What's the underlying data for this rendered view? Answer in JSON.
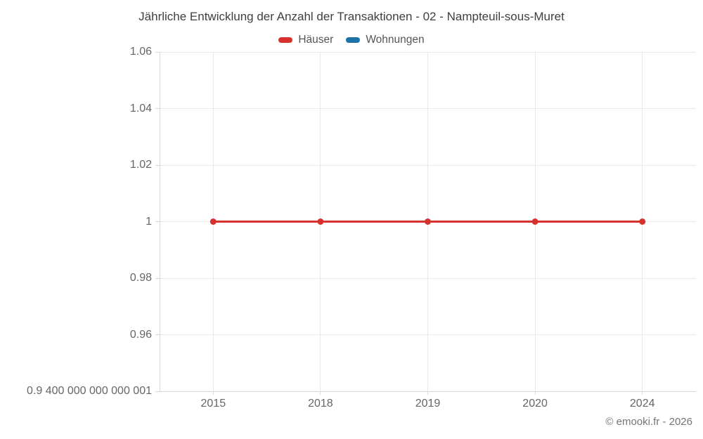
{
  "chart": {
    "title": "Jährliche Entwicklung der Anzahl der Transaktionen - 02 - Nampteuil-sous-Muret",
    "attribution": "© emooki.fr - 2026"
  },
  "chart_data": {
    "type": "line",
    "title": "Jährliche Entwicklung der Anzahl der Transaktionen - 02 - Nampteuil-sous-Muret",
    "categories": [
      "2015",
      "2018",
      "2019",
      "2020",
      "2024"
    ],
    "series": [
      {
        "name": "Häuser",
        "color": "#d7312d",
        "values": [
          1,
          1,
          1,
          1,
          1
        ]
      },
      {
        "name": "Wohnungen",
        "color": "#1d73a8",
        "values": []
      }
    ],
    "xlabel": "",
    "ylabel": "",
    "ylim": [
      0.9400000000000001,
      1.06
    ],
    "y_ticks": [
      {
        "value": 1.06,
        "label": "1.06"
      },
      {
        "value": 1.04,
        "label": "1.04"
      },
      {
        "value": 1.02,
        "label": "1.02"
      },
      {
        "value": 1.0,
        "label": "1"
      },
      {
        "value": 0.98,
        "label": "0.98"
      },
      {
        "value": 0.96,
        "label": "0.96"
      },
      {
        "value": 0.9400000000000001,
        "label": "0.9 400 000 000 000 001"
      }
    ],
    "grid": "on",
    "legend_position": "top"
  },
  "colors": {
    "grid": "#e9e9e9",
    "axis": "#d9d9d9",
    "tick_label": "#666666",
    "title_text": "#3f3f3f",
    "legend_text": "#555555",
    "attribution": "#757575",
    "hauser": "#d7312d",
    "wohnungen": "#1d73a8"
  }
}
